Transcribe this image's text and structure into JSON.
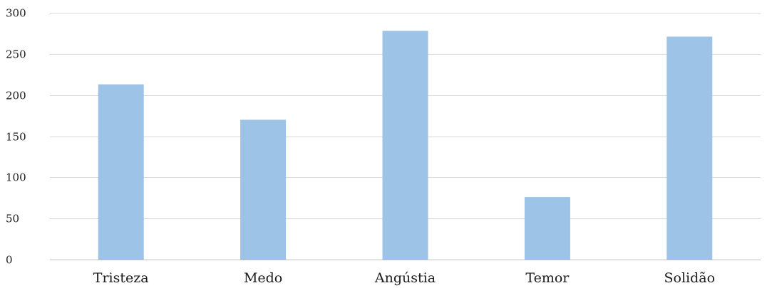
{
  "chart_data": {
    "type": "bar",
    "categories": [
      "Tristeza",
      "Medo",
      "Angústia",
      "Temor",
      "Solidão"
    ],
    "values": [
      213,
      170,
      278,
      76,
      271
    ],
    "title": "",
    "xlabel": "",
    "ylabel": "",
    "ylim": [
      0,
      300
    ],
    "yticks": [
      0,
      50,
      100,
      150,
      200,
      250,
      300
    ],
    "grid": true,
    "legend": "none",
    "bar_color": "#9dc3e6",
    "grid_color": "#d9d9d9"
  }
}
